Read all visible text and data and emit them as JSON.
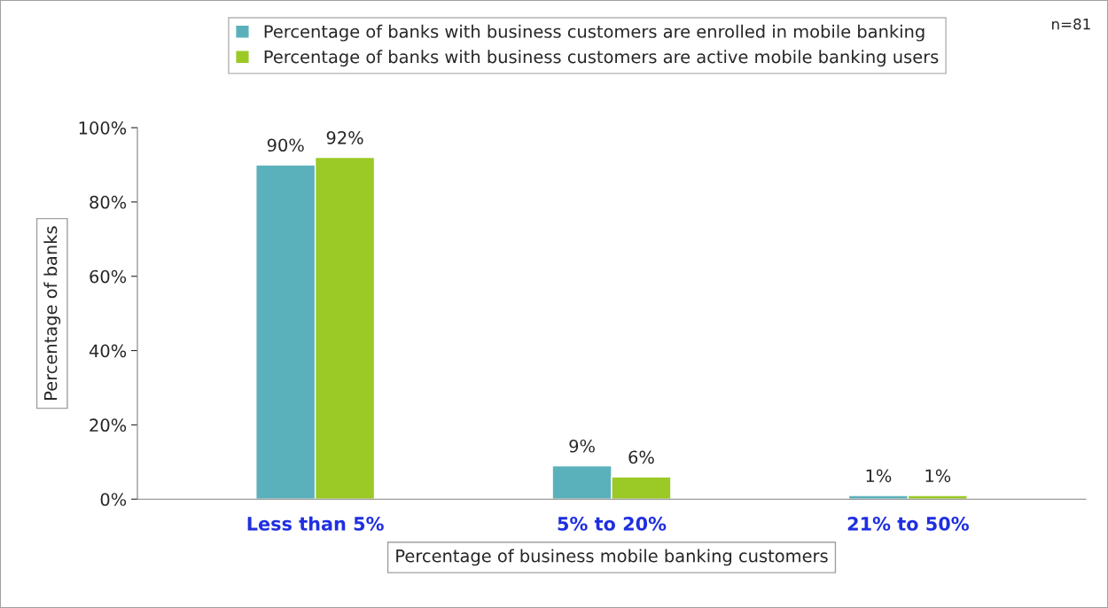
{
  "chart_data": {
    "type": "bar",
    "xlabel": "Percentage of business mobile banking customers",
    "ylabel": "Percentage of banks",
    "categories": [
      "Less than 5%",
      "5% to 20%",
      "21% to 50%"
    ],
    "series": [
      {
        "name": "Percentage of banks with business customers are enrolled in mobile banking",
        "color": "#5bb1bb",
        "values": [
          90,
          9,
          1
        ],
        "value_labels": [
          "90%",
          "9%",
          "1%"
        ]
      },
      {
        "name": "Percentage of banks with business customers are active mobile banking users",
        "color": "#9bc925",
        "values": [
          92,
          6,
          1
        ],
        "value_labels": [
          "92%",
          "6%",
          "1%"
        ]
      }
    ],
    "ylim": [
      0,
      100
    ],
    "yticks": [
      {
        "value": 0,
        "label": "0%"
      },
      {
        "value": 20,
        "label": "20%"
      },
      {
        "value": 40,
        "label": "40%"
      },
      {
        "value": 60,
        "label": "60%"
      },
      {
        "value": 80,
        "label": "80%"
      },
      {
        "value": 100,
        "label": "100%"
      }
    ],
    "legend": "top",
    "annotations": [
      "n=81"
    ]
  }
}
